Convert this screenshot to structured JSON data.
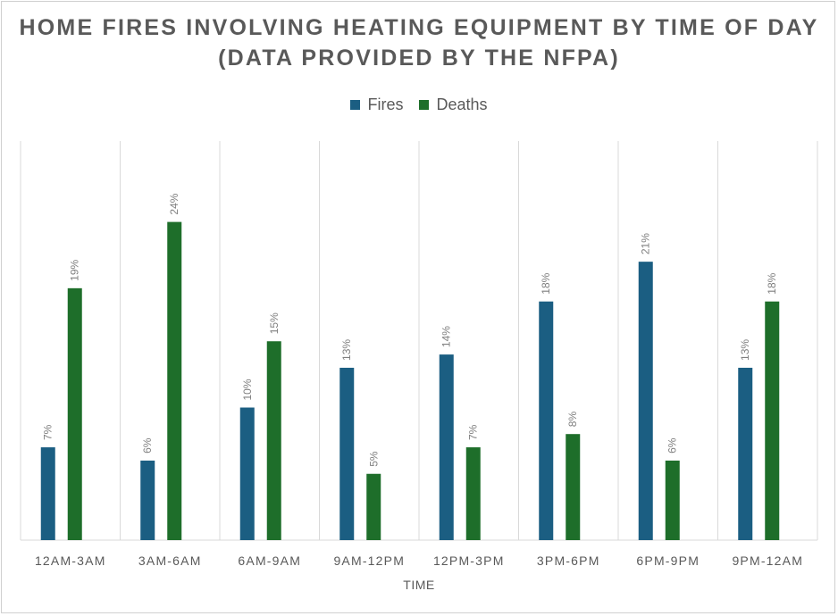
{
  "chart_data": {
    "type": "bar",
    "title": "HOME FIRES INVOLVING HEATING EQUIPMENT BY TIME OF DAY (DATA PROVIDED BY THE NFPA)",
    "xlabel": "TIME",
    "ylabel": "",
    "categories": [
      "12AM-3AM",
      "3AM-6AM",
      "6AM-9AM",
      "9AM-12PM",
      "12PM-3PM",
      "3PM-6PM",
      "6PM-9PM",
      "9PM-12AM"
    ],
    "series": [
      {
        "name": "Fires",
        "values": [
          7,
          6,
          10,
          13,
          14,
          18,
          21,
          13
        ],
        "color": "#1b5e82"
      },
      {
        "name": "Deaths",
        "values": [
          19,
          24,
          15,
          5,
          7,
          8,
          6,
          18
        ],
        "color": "#1e6e2a"
      }
    ],
    "ylim": [
      0,
      24
    ],
    "value_suffix": "%",
    "legend_position": "top",
    "grid": "vertical category separators"
  }
}
